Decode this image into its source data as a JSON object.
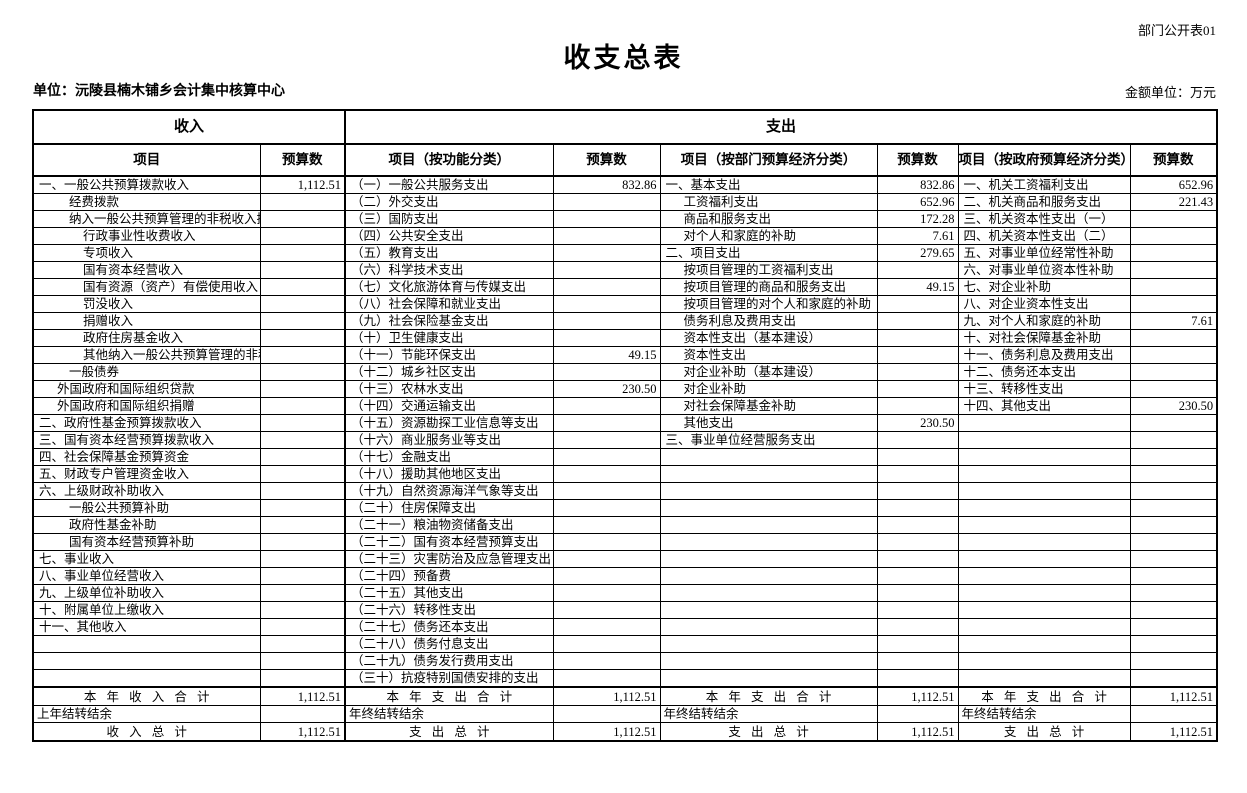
{
  "page": {
    "doc_label": "部门公开表01",
    "title": "收支总表",
    "unit_label": "单位：沅陵县楠木铺乡会计集中核算中心",
    "amount_unit": "金额单位：万元"
  },
  "table": {
    "group_headers": {
      "income": "收入",
      "expenditure": "支出"
    },
    "col_headers": [
      "项目",
      "预算数",
      "项目（按功能分类）",
      "预算数",
      "项目（按部门预算经济分类）",
      "预算数",
      "项目（按政府预算经济分类）",
      "预算数"
    ],
    "rows": [
      {
        "c": [
          "一、一般公共预算拨款收入",
          "1,112.51",
          "（一）一般公共服务支出",
          "832.86",
          "一、基本支出",
          "832.86",
          "一、机关工资福利支出",
          "652.96"
        ],
        "ind": [
          0,
          0,
          0,
          0
        ]
      },
      {
        "c": [
          "经费拨款",
          "",
          "（二）外交支出",
          "",
          "工资福利支出",
          "652.96",
          "二、机关商品和服务支出",
          "221.43"
        ],
        "ind": [
          2,
          0,
          1,
          0
        ]
      },
      {
        "c": [
          "纳入一般公共预算管理的非税收入拨款",
          "",
          "（三）国防支出",
          "",
          "商品和服务支出",
          "172.28",
          "三、机关资本性支出（一）",
          ""
        ],
        "ind": [
          2,
          0,
          1,
          0
        ]
      },
      {
        "c": [
          "行政事业性收费收入",
          "",
          "（四）公共安全支出",
          "",
          "对个人和家庭的补助",
          "7.61",
          "四、机关资本性支出（二）",
          ""
        ],
        "ind": [
          3,
          0,
          1,
          0
        ]
      },
      {
        "c": [
          "专项收入",
          "",
          "（五）教育支出",
          "",
          "二、项目支出",
          "279.65",
          "五、对事业单位经常性补助",
          ""
        ],
        "ind": [
          3,
          0,
          0,
          0
        ]
      },
      {
        "c": [
          "国有资本经营收入",
          "",
          "（六）科学技术支出",
          "",
          "按项目管理的工资福利支出",
          "",
          "六、对事业单位资本性补助",
          ""
        ],
        "ind": [
          3,
          0,
          1,
          0
        ]
      },
      {
        "c": [
          "国有资源（资产）有偿使用收入",
          "",
          "（七）文化旅游体育与传媒支出",
          "",
          "按项目管理的商品和服务支出",
          "49.15",
          "七、对企业补助",
          ""
        ],
        "ind": [
          3,
          0,
          1,
          0
        ]
      },
      {
        "c": [
          "罚没收入",
          "",
          "（八）社会保障和就业支出",
          "",
          "按项目管理的对个人和家庭的补助",
          "",
          "八、对企业资本性支出",
          ""
        ],
        "ind": [
          3,
          0,
          1,
          0
        ]
      },
      {
        "c": [
          "捐赠收入",
          "",
          "（九）社会保险基金支出",
          "",
          "债务利息及费用支出",
          "",
          "九、对个人和家庭的补助",
          "7.61"
        ],
        "ind": [
          3,
          0,
          1,
          0
        ]
      },
      {
        "c": [
          "政府住房基金收入",
          "",
          "（十）卫生健康支出",
          "",
          "资本性支出（基本建设）",
          "",
          "十、对社会保障基金补助",
          ""
        ],
        "ind": [
          3,
          0,
          1,
          0
        ]
      },
      {
        "c": [
          "其他纳入一般公共预算管理的非税收",
          "",
          "（十一）节能环保支出",
          "49.15",
          "资本性支出",
          "",
          "十一、债务利息及费用支出",
          ""
        ],
        "ind": [
          3,
          0,
          1,
          0
        ]
      },
      {
        "c": [
          "一般债券",
          "",
          "（十二）城乡社区支出",
          "",
          "对企业补助（基本建设）",
          "",
          "十二、债务还本支出",
          ""
        ],
        "ind": [
          2,
          0,
          1,
          0
        ]
      },
      {
        "c": [
          "外国政府和国际组织贷款",
          "",
          "（十三）农林水支出",
          "230.50",
          "对企业补助",
          "",
          "十三、转移性支出",
          ""
        ],
        "ind": [
          1,
          0,
          1,
          0
        ]
      },
      {
        "c": [
          "外国政府和国际组织捐赠",
          "",
          "（十四）交通运输支出",
          "",
          "对社会保障基金补助",
          "",
          "十四、其他支出",
          "230.50"
        ],
        "ind": [
          1,
          0,
          1,
          0
        ]
      },
      {
        "c": [
          "二、政府性基金预算拨款收入",
          "",
          "（十五）资源勘探工业信息等支出",
          "",
          "其他支出",
          "230.50",
          "",
          ""
        ],
        "ind": [
          0,
          0,
          1,
          0
        ]
      },
      {
        "c": [
          "三、国有资本经营预算拨款收入",
          "",
          "（十六）商业服务业等支出",
          "",
          "三、事业单位经营服务支出",
          "",
          "",
          ""
        ],
        "ind": [
          0,
          0,
          0,
          0
        ]
      },
      {
        "c": [
          "四、社会保障基金预算资金",
          "",
          "（十七）金融支出",
          "",
          "",
          "",
          "",
          ""
        ],
        "ind": [
          0,
          0,
          0,
          0
        ]
      },
      {
        "c": [
          "五、财政专户管理资金收入",
          "",
          "（十八）援助其他地区支出",
          "",
          "",
          "",
          "",
          ""
        ],
        "ind": [
          0,
          0,
          0,
          0
        ]
      },
      {
        "c": [
          "六、上级财政补助收入",
          "",
          "（十九）自然资源海洋气象等支出",
          "",
          "",
          "",
          "",
          ""
        ],
        "ind": [
          0,
          0,
          0,
          0
        ]
      },
      {
        "c": [
          "一般公共预算补助",
          "",
          "（二十）住房保障支出",
          "",
          "",
          "",
          "",
          ""
        ],
        "ind": [
          2,
          0,
          0,
          0
        ]
      },
      {
        "c": [
          "政府性基金补助",
          "",
          "（二十一）粮油物资储备支出",
          "",
          "",
          "",
          "",
          ""
        ],
        "ind": [
          2,
          0,
          0,
          0
        ]
      },
      {
        "c": [
          "国有资本经营预算补助",
          "",
          "（二十二）国有资本经营预算支出",
          "",
          "",
          "",
          "",
          ""
        ],
        "ind": [
          2,
          0,
          0,
          0
        ]
      },
      {
        "c": [
          "七、事业收入",
          "",
          "（二十三）灾害防治及应急管理支出",
          "",
          "",
          "",
          "",
          ""
        ],
        "ind": [
          0,
          0,
          0,
          0
        ]
      },
      {
        "c": [
          "八、事业单位经营收入",
          "",
          "（二十四）预备费",
          "",
          "",
          "",
          "",
          ""
        ],
        "ind": [
          0,
          0,
          0,
          0
        ]
      },
      {
        "c": [
          "九、上级单位补助收入",
          "",
          "（二十五）其他支出",
          "",
          "",
          "",
          "",
          ""
        ],
        "ind": [
          0,
          0,
          0,
          0
        ]
      },
      {
        "c": [
          "十、附属单位上缴收入",
          "",
          "（二十六）转移性支出",
          "",
          "",
          "",
          "",
          ""
        ],
        "ind": [
          0,
          0,
          0,
          0
        ]
      },
      {
        "c": [
          "十一、其他收入",
          "",
          "（二十七）债务还本支出",
          "",
          "",
          "",
          "",
          ""
        ],
        "ind": [
          0,
          0,
          0,
          0
        ]
      },
      {
        "c": [
          "",
          "",
          "（二十八）债务付息支出",
          "",
          "",
          "",
          "",
          ""
        ],
        "ind": [
          0,
          0,
          0,
          0
        ]
      },
      {
        "c": [
          "",
          "",
          "（二十九）债务发行费用支出",
          "",
          "",
          "",
          "",
          ""
        ],
        "ind": [
          0,
          0,
          0,
          0
        ]
      },
      {
        "c": [
          "",
          "",
          "（三十）抗疫特别国债安排的支出",
          "",
          "",
          "",
          "",
          ""
        ],
        "ind": [
          0,
          0,
          0,
          0
        ]
      }
    ],
    "totals": [
      {
        "c": [
          "本 年 收 入 合 计",
          "1,112.51",
          "本 年 支 出 合 计",
          "1,112.51",
          "本 年 支 出 合 计",
          "1,112.51",
          "本 年 支 出 合 计",
          "1,112.51"
        ],
        "cls": "total-row",
        "center": true
      },
      {
        "c": [
          "上年结转结余",
          "",
          "年终结转结余",
          "",
          "年终结转结余",
          "",
          "年终结转结余",
          ""
        ],
        "cls": "carry-row",
        "center": false
      },
      {
        "c": [
          "收  入  总  计",
          "1,112.51",
          "支  出  总  计",
          "1,112.51",
          "支  出  总  计",
          "1,112.51",
          "支  出  总  计",
          "1,112.51"
        ],
        "cls": "grand-row",
        "center": true
      }
    ]
  }
}
